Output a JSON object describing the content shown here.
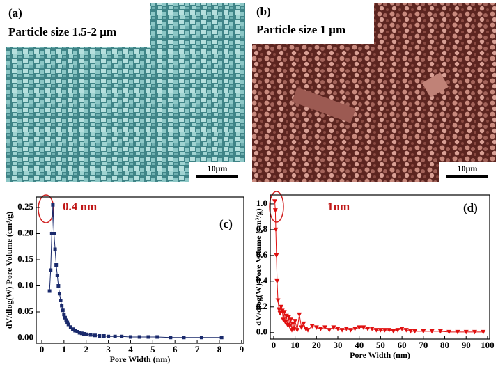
{
  "images": [
    {
      "label": "(a)",
      "caption": "Particle size 1.5-2 μm",
      "scale_bar": "10μm"
    },
    {
      "label": "(b)",
      "caption": "Particle size 1 μm",
      "scale_bar": "10μm"
    }
  ],
  "chart_data": [
    {
      "type": "line",
      "panel_label": "(c)",
      "annotation": "0.4 nm",
      "x_label": "Pore Width (nm)",
      "y_label": "dV/dlog(W) Pore Volume (cm³/g)",
      "color": "#1a2a6c",
      "marker": "square",
      "x": [
        0.35,
        0.4,
        0.45,
        0.5,
        0.55,
        0.6,
        0.65,
        0.7,
        0.75,
        0.8,
        0.85,
        0.9,
        0.95,
        1.0,
        1.05,
        1.1,
        1.15,
        1.2,
        1.3,
        1.4,
        1.5,
        1.6,
        1.7,
        1.8,
        1.9,
        2.0,
        2.2,
        2.4,
        2.6,
        2.8,
        3.0,
        3.3,
        3.6,
        4.0,
        4.4,
        4.8,
        5.2,
        5.8,
        6.4,
        7.2,
        8.1
      ],
      "values": [
        0.09,
        0.13,
        0.2,
        0.255,
        0.2,
        0.17,
        0.14,
        0.12,
        0.1,
        0.085,
        0.072,
        0.062,
        0.053,
        0.045,
        0.039,
        0.034,
        0.03,
        0.026,
        0.021,
        0.017,
        0.014,
        0.012,
        0.01,
        0.009,
        0.008,
        0.007,
        0.006,
        0.005,
        0.004,
        0.004,
        0.003,
        0.003,
        0.003,
        0.002,
        0.002,
        0.002,
        0.002,
        0.001,
        0.001,
        0.001,
        0.001
      ],
      "xlim": [
        -0.25,
        9.1
      ],
      "ylim": [
        -0.01,
        0.27
      ],
      "xticks": [
        0,
        1,
        2,
        3,
        4,
        5,
        6,
        7,
        8,
        9
      ],
      "yticks": [
        {
          "value": 0,
          "label": "0.00"
        },
        0.05,
        {
          "value": 0.1,
          "label": "0.10"
        },
        0.15,
        {
          "value": 0.2,
          "label": "0.20"
        },
        0.25
      ]
    },
    {
      "type": "line",
      "panel_label": "(d)",
      "annotation": "1nm",
      "x_label": "Pore Width (nm)",
      "y_label": "dV/dlog(W) Pore Volume (cm³/g)",
      "color": "#e01010",
      "marker": "triangle-down",
      "x": [
        0.5,
        0.8,
        1,
        1.3,
        1.6,
        2,
        2.5,
        3,
        3.5,
        4,
        4.5,
        5,
        5.5,
        6,
        6.5,
        7,
        7.5,
        8,
        8.5,
        9,
        9.5,
        10,
        11,
        12,
        13,
        14,
        15,
        16,
        18,
        20,
        22,
        24,
        26,
        28,
        30,
        32,
        34,
        36,
        38,
        40,
        42,
        44,
        46,
        48,
        50,
        52,
        54,
        56,
        58,
        60,
        62,
        64,
        66,
        70,
        74,
        78,
        82,
        86,
        90,
        94,
        98
      ],
      "values": [
        1.02,
        0.95,
        0.8,
        0.6,
        0.4,
        0.25,
        0.18,
        0.15,
        0.2,
        0.17,
        0.1,
        0.16,
        0.08,
        0.13,
        0.06,
        0.12,
        0.05,
        0.1,
        0.02,
        0.07,
        0.03,
        0.09,
        0.02,
        0.14,
        0.04,
        0.07,
        0.03,
        0.02,
        0.05,
        0.04,
        0.03,
        0.04,
        0.02,
        0.04,
        0.03,
        0.02,
        0.03,
        0.02,
        0.03,
        0.04,
        0.04,
        0.03,
        0.03,
        0.02,
        0.02,
        0.02,
        0.02,
        0.01,
        0.02,
        0.03,
        0.02,
        0.01,
        0.01,
        0.01,
        0.01,
        0.01,
        0.005,
        0.005,
        0.005,
        0.005,
        0.005
      ],
      "xlim": [
        -1.6,
        101
      ],
      "ylim": [
        -0.05,
        1.07
      ],
      "xticks": [
        0,
        10,
        20,
        30,
        40,
        50,
        60,
        70,
        80,
        90,
        100
      ],
      "yticks": [
        {
          "value": 0,
          "label": "0.0"
        },
        0.2,
        0.4,
        0.6,
        0.8,
        {
          "value": 1,
          "label": "1.0"
        }
      ]
    }
  ]
}
